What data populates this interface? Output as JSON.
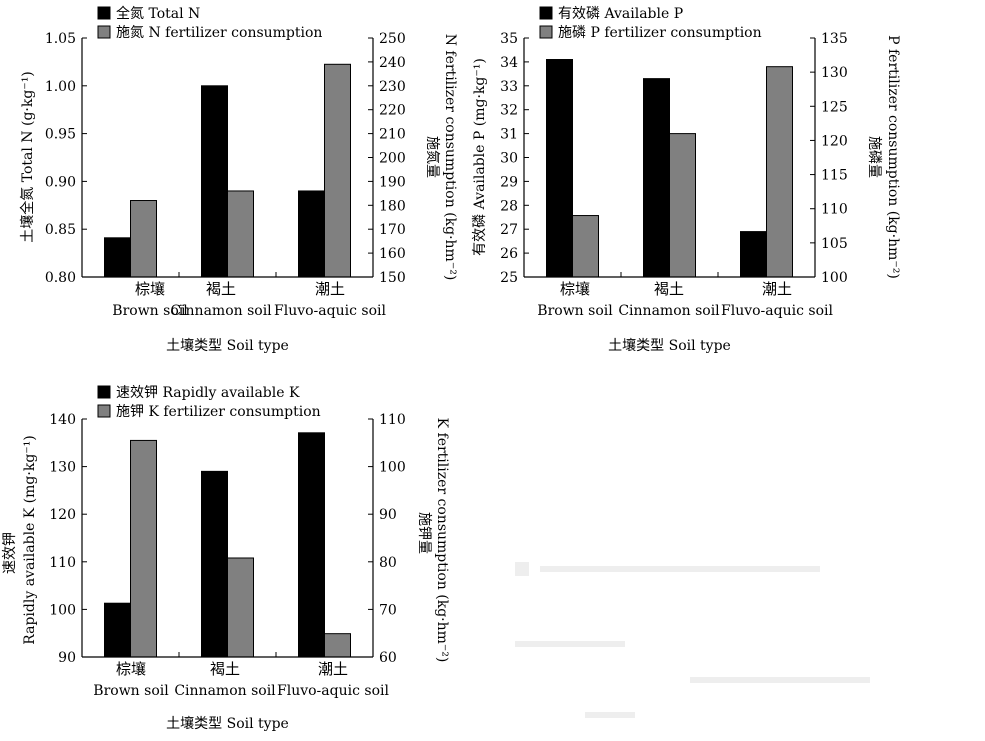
{
  "chart_data": [
    {
      "id": "panel-n",
      "type": "bar",
      "categories": [
        {
          "zh": "棕壤",
          "en": "Brown soil"
        },
        {
          "zh": "褐土",
          "en": "Cinnamon soil"
        },
        {
          "zh": "潮土",
          "en": "Fluvo-aquic soil"
        }
      ],
      "series": [
        {
          "name": "全氮 Total N",
          "axis": "left",
          "values": [
            0.841,
            1.0,
            0.89
          ],
          "color": "#000000"
        },
        {
          "name": "施氮 N fertilizer consumption",
          "axis": "right",
          "values": [
            182,
            186,
            239
          ],
          "color": "#808080"
        }
      ],
      "xlabel": "土壤类型 Soil type",
      "ylabel_left": "土壤全氮 Total N (g·kg⁻¹)",
      "ylabel_right_zh": "施氮量",
      "ylabel_right_en": "N fertilizer consumption (kg·hm⁻²)",
      "ylim_left": [
        0.8,
        1.05
      ],
      "yticks_left": [
        "0.80",
        "0.85",
        "0.90",
        "0.95",
        "1.00",
        "1.05"
      ],
      "ylim_right": [
        150,
        250
      ],
      "yticks_right": [
        "150",
        "160",
        "170",
        "180",
        "190",
        "200",
        "210",
        "220",
        "230",
        "240",
        "250"
      ],
      "legend_position": "top-left",
      "grid": false
    },
    {
      "id": "panel-p",
      "type": "bar",
      "categories": [
        {
          "zh": "棕壤",
          "en": "Brown soil"
        },
        {
          "zh": "褐土",
          "en": "Cinnamon soil"
        },
        {
          "zh": "潮土",
          "en": "Fluvo-aquic soil"
        }
      ],
      "series": [
        {
          "name": "有效磷 Available P",
          "axis": "left",
          "values": [
            34.1,
            33.3,
            26.9
          ],
          "color": "#000000"
        },
        {
          "name": "施磷 P fertilizer consumption",
          "axis": "right",
          "values": [
            109,
            121,
            130.8
          ],
          "color": "#808080"
        }
      ],
      "xlabel": "土壤类型 Soil type",
      "ylabel_left": "有效磷 Available P (mg·kg⁻¹)",
      "ylabel_right_zh": "施磷量",
      "ylabel_right_en": "P fertilizer consumption (kg·hm⁻²)",
      "ylim_left": [
        25,
        35
      ],
      "yticks_left": [
        "25",
        "26",
        "27",
        "28",
        "29",
        "30",
        "31",
        "32",
        "33",
        "34",
        "35"
      ],
      "ylim_right": [
        100,
        135
      ],
      "yticks_right": [
        "100",
        "105",
        "110",
        "115",
        "120",
        "125",
        "130",
        "135"
      ],
      "legend_position": "top-left",
      "grid": false
    },
    {
      "id": "panel-k",
      "type": "bar",
      "categories": [
        {
          "zh": "棕壤",
          "en": "Brown soil"
        },
        {
          "zh": "褐土",
          "en": "Cinnamon soil"
        },
        {
          "zh": "潮土",
          "en": "Fluvo-aquic soil"
        }
      ],
      "series": [
        {
          "name": "速效钾 Rapidly available K",
          "axis": "left",
          "values": [
            101.3,
            129,
            137.1
          ],
          "color": "#000000"
        },
        {
          "name": "施钾 K fertilizer consumption",
          "axis": "right",
          "values": [
            105.5,
            80.8,
            64.9
          ],
          "color": "#808080"
        }
      ],
      "xlabel": "土壤类型 Soil type",
      "ylabel_left_zh": "速效钾",
      "ylabel_left_en": "Rapidly available K (mg·kg⁻¹)",
      "ylabel_right_zh": "施钾量",
      "ylabel_right_en": "K fertilizer consumption (kg·hm⁻²)",
      "ylim_left": [
        90,
        140
      ],
      "yticks_left": [
        "90",
        "100",
        "110",
        "120",
        "130",
        "140"
      ],
      "ylim_right": [
        60,
        110
      ],
      "yticks_right": [
        "60",
        "70",
        "80",
        "90",
        "100",
        "110"
      ],
      "legend_position": "top-left",
      "grid": false
    }
  ]
}
